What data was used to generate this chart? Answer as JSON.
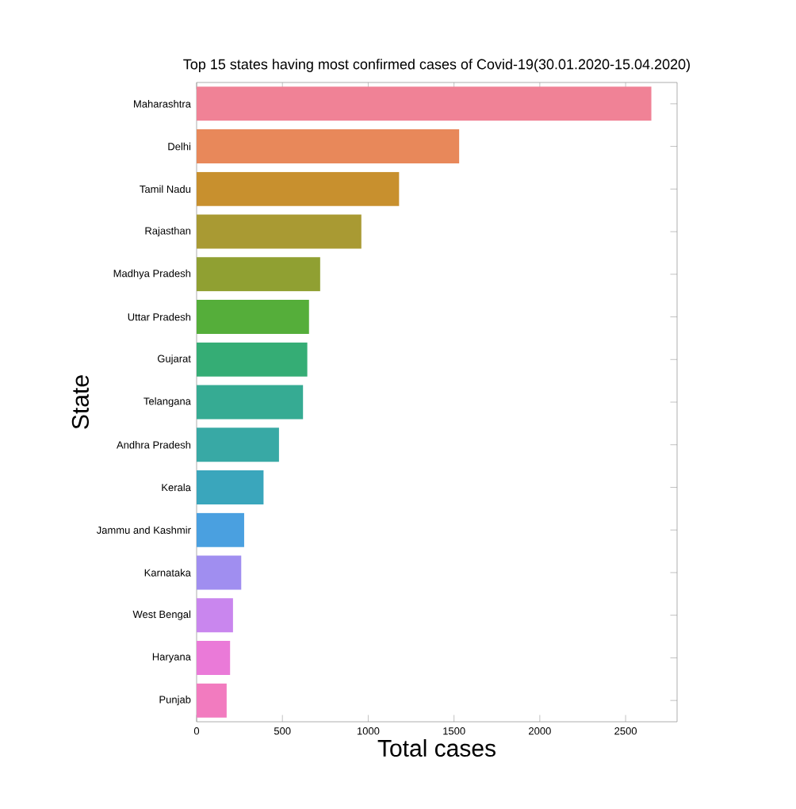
{
  "chart_data": {
    "type": "bar",
    "orientation": "horizontal",
    "title": "Top 15 states having most confirmed cases of Covid-19(30.01.2020-15.04.2020)",
    "xlabel": "Total cases",
    "ylabel": "State",
    "categories": [
      "Maharashtra",
      "Delhi",
      "Tamil Nadu",
      "Rajasthan",
      "Madhya Pradesh",
      "Uttar Pradesh",
      "Gujarat",
      "Telangana",
      "Andhra Pradesh",
      "Kerala",
      "Jammu and Kashmir",
      "Karnataka",
      "West Bengal",
      "Haryana",
      "Punjab"
    ],
    "values": [
      2650,
      1530,
      1180,
      960,
      720,
      655,
      645,
      620,
      480,
      390,
      277,
      260,
      212,
      195,
      175
    ],
    "colors": [
      "#f08296",
      "#e8885a",
      "#c8902e",
      "#a99a33",
      "#90a032",
      "#55ae3a",
      "#35ad75",
      "#36ab93",
      "#38a9a5",
      "#3aa6bc",
      "#4aa0e0",
      "#a08ef0",
      "#c986ee",
      "#ea7ad8",
      "#f27bbf"
    ],
    "xlim": [
      0,
      2800
    ],
    "xticks": [
      0,
      500,
      1000,
      1500,
      2000,
      2500
    ],
    "grid": false
  }
}
